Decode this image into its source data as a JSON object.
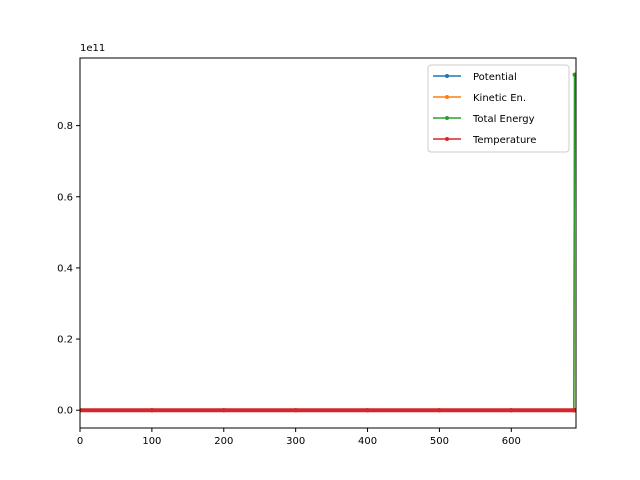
{
  "chart_data": {
    "type": "line",
    "title": "",
    "xlabel": "",
    "ylabel": "",
    "offset_label": "1e11",
    "xlim": [
      0,
      690
    ],
    "ylim": [
      -0.05,
      0.99
    ],
    "y_unit_multiplier": 100000000000,
    "xticks": [
      0,
      100,
      200,
      300,
      400,
      500,
      600
    ],
    "yticks": [
      0.0,
      0.2,
      0.4,
      0.6,
      0.8
    ],
    "ytick_labels": [
      "0.0",
      "0.2",
      "0.4",
      "0.6",
      "0.8"
    ],
    "grid": false,
    "legend_position": "top-right",
    "series": [
      {
        "name": "Potential",
        "color": "#1f77b4",
        "x": [
          0,
          100,
          200,
          300,
          400,
          500,
          600,
          687,
          688,
          689
        ],
        "y": [
          0,
          0,
          0,
          0,
          0,
          0,
          0,
          0,
          0,
          0
        ]
      },
      {
        "name": "Kinetic En.",
        "color": "#ff7f0e",
        "x": [
          0,
          100,
          200,
          300,
          400,
          500,
          600,
          687,
          688,
          689
        ],
        "y": [
          0,
          0,
          0,
          0,
          0,
          0,
          0,
          0,
          0.943,
          0.943
        ]
      },
      {
        "name": "Total Energy",
        "color": "#2ca02c",
        "x": [
          0,
          100,
          200,
          300,
          400,
          500,
          600,
          687,
          688,
          689
        ],
        "y": [
          0,
          0,
          0,
          0,
          0,
          0,
          0,
          0,
          0.943,
          0.943
        ]
      },
      {
        "name": "Temperature",
        "color": "#d62728",
        "x": [
          0,
          100,
          200,
          300,
          400,
          500,
          600,
          687,
          688,
          689
        ],
        "y": [
          0,
          0,
          0,
          0,
          0,
          0,
          0,
          0,
          0,
          0
        ]
      }
    ]
  }
}
